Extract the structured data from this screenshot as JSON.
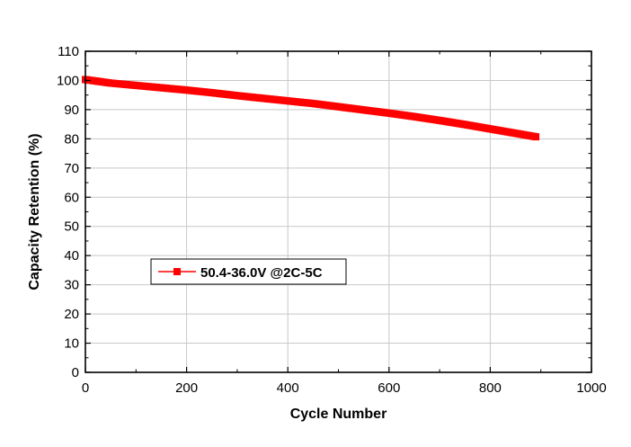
{
  "chart_data": {
    "type": "line",
    "xlabel": "Cycle Number",
    "ylabel": "Capacity Retention (%)",
    "xlim": [
      0,
      1000
    ],
    "ylim": [
      0,
      110
    ],
    "xticks": [
      0,
      200,
      400,
      600,
      800,
      1000
    ],
    "yticks": [
      0,
      10,
      20,
      30,
      40,
      50,
      60,
      70,
      80,
      90,
      100,
      110
    ],
    "grid": true,
    "legend_position": "lower-left",
    "series": [
      {
        "name": "50.4-36.0V @2C-5C",
        "color": "#ff0000",
        "marker": "square",
        "x": [
          0,
          25,
          50,
          75,
          100,
          150,
          200,
          250,
          300,
          350,
          400,
          450,
          500,
          550,
          600,
          650,
          700,
          750,
          800,
          850,
          890
        ],
        "y": [
          100.3,
          99.7,
          99.1,
          98.7,
          98.3,
          97.5,
          96.7,
          95.8,
          94.8,
          93.9,
          93.0,
          92.1,
          91.0,
          89.9,
          88.8,
          87.6,
          86.3,
          84.9,
          83.4,
          81.9,
          80.7
        ]
      }
    ]
  }
}
